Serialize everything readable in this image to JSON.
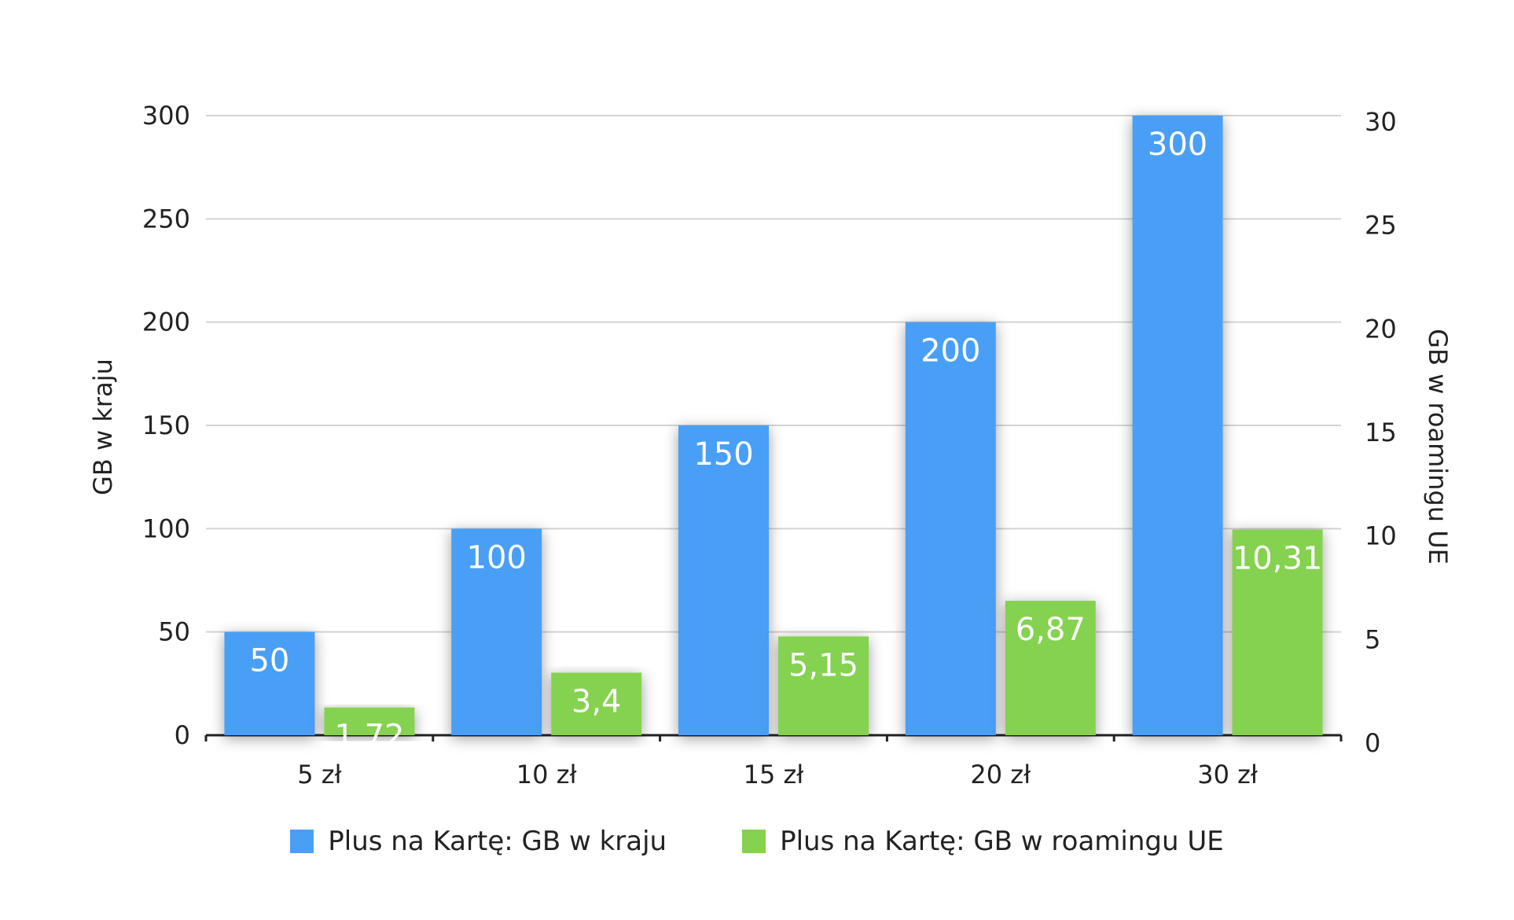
{
  "chart_data": {
    "type": "bar",
    "categories": [
      "5 zł",
      "10 zł",
      "15 zł",
      "20 zł",
      "30 zł"
    ],
    "series": [
      {
        "name": "Plus na Kartę: GB w kraju",
        "axis": "left",
        "color": "#4a9ff5",
        "values": [
          50,
          100,
          150,
          200,
          300
        ],
        "labels": [
          "50",
          "100",
          "150",
          "200",
          "300"
        ]
      },
      {
        "name": "Plus na Kartę: GB w roamingu UE",
        "axis": "right",
        "color": "#84d24f",
        "values": [
          1.72,
          3.4,
          5.15,
          6.87,
          10.31
        ],
        "labels": [
          "1,72",
          "3,4",
          "5,15",
          "6,87",
          "10,31"
        ]
      }
    ],
    "ylabel": "GB w kraju",
    "y2label": "GB w roamingu UE",
    "ylim": [
      0,
      300
    ],
    "y2lim": [
      0,
      30
    ],
    "yticks": [
      0,
      50,
      100,
      150,
      200,
      250,
      300
    ],
    "y2ticks": [
      0,
      5,
      10,
      15,
      20,
      25,
      30
    ],
    "grid": true,
    "legend_position": "bottom"
  }
}
